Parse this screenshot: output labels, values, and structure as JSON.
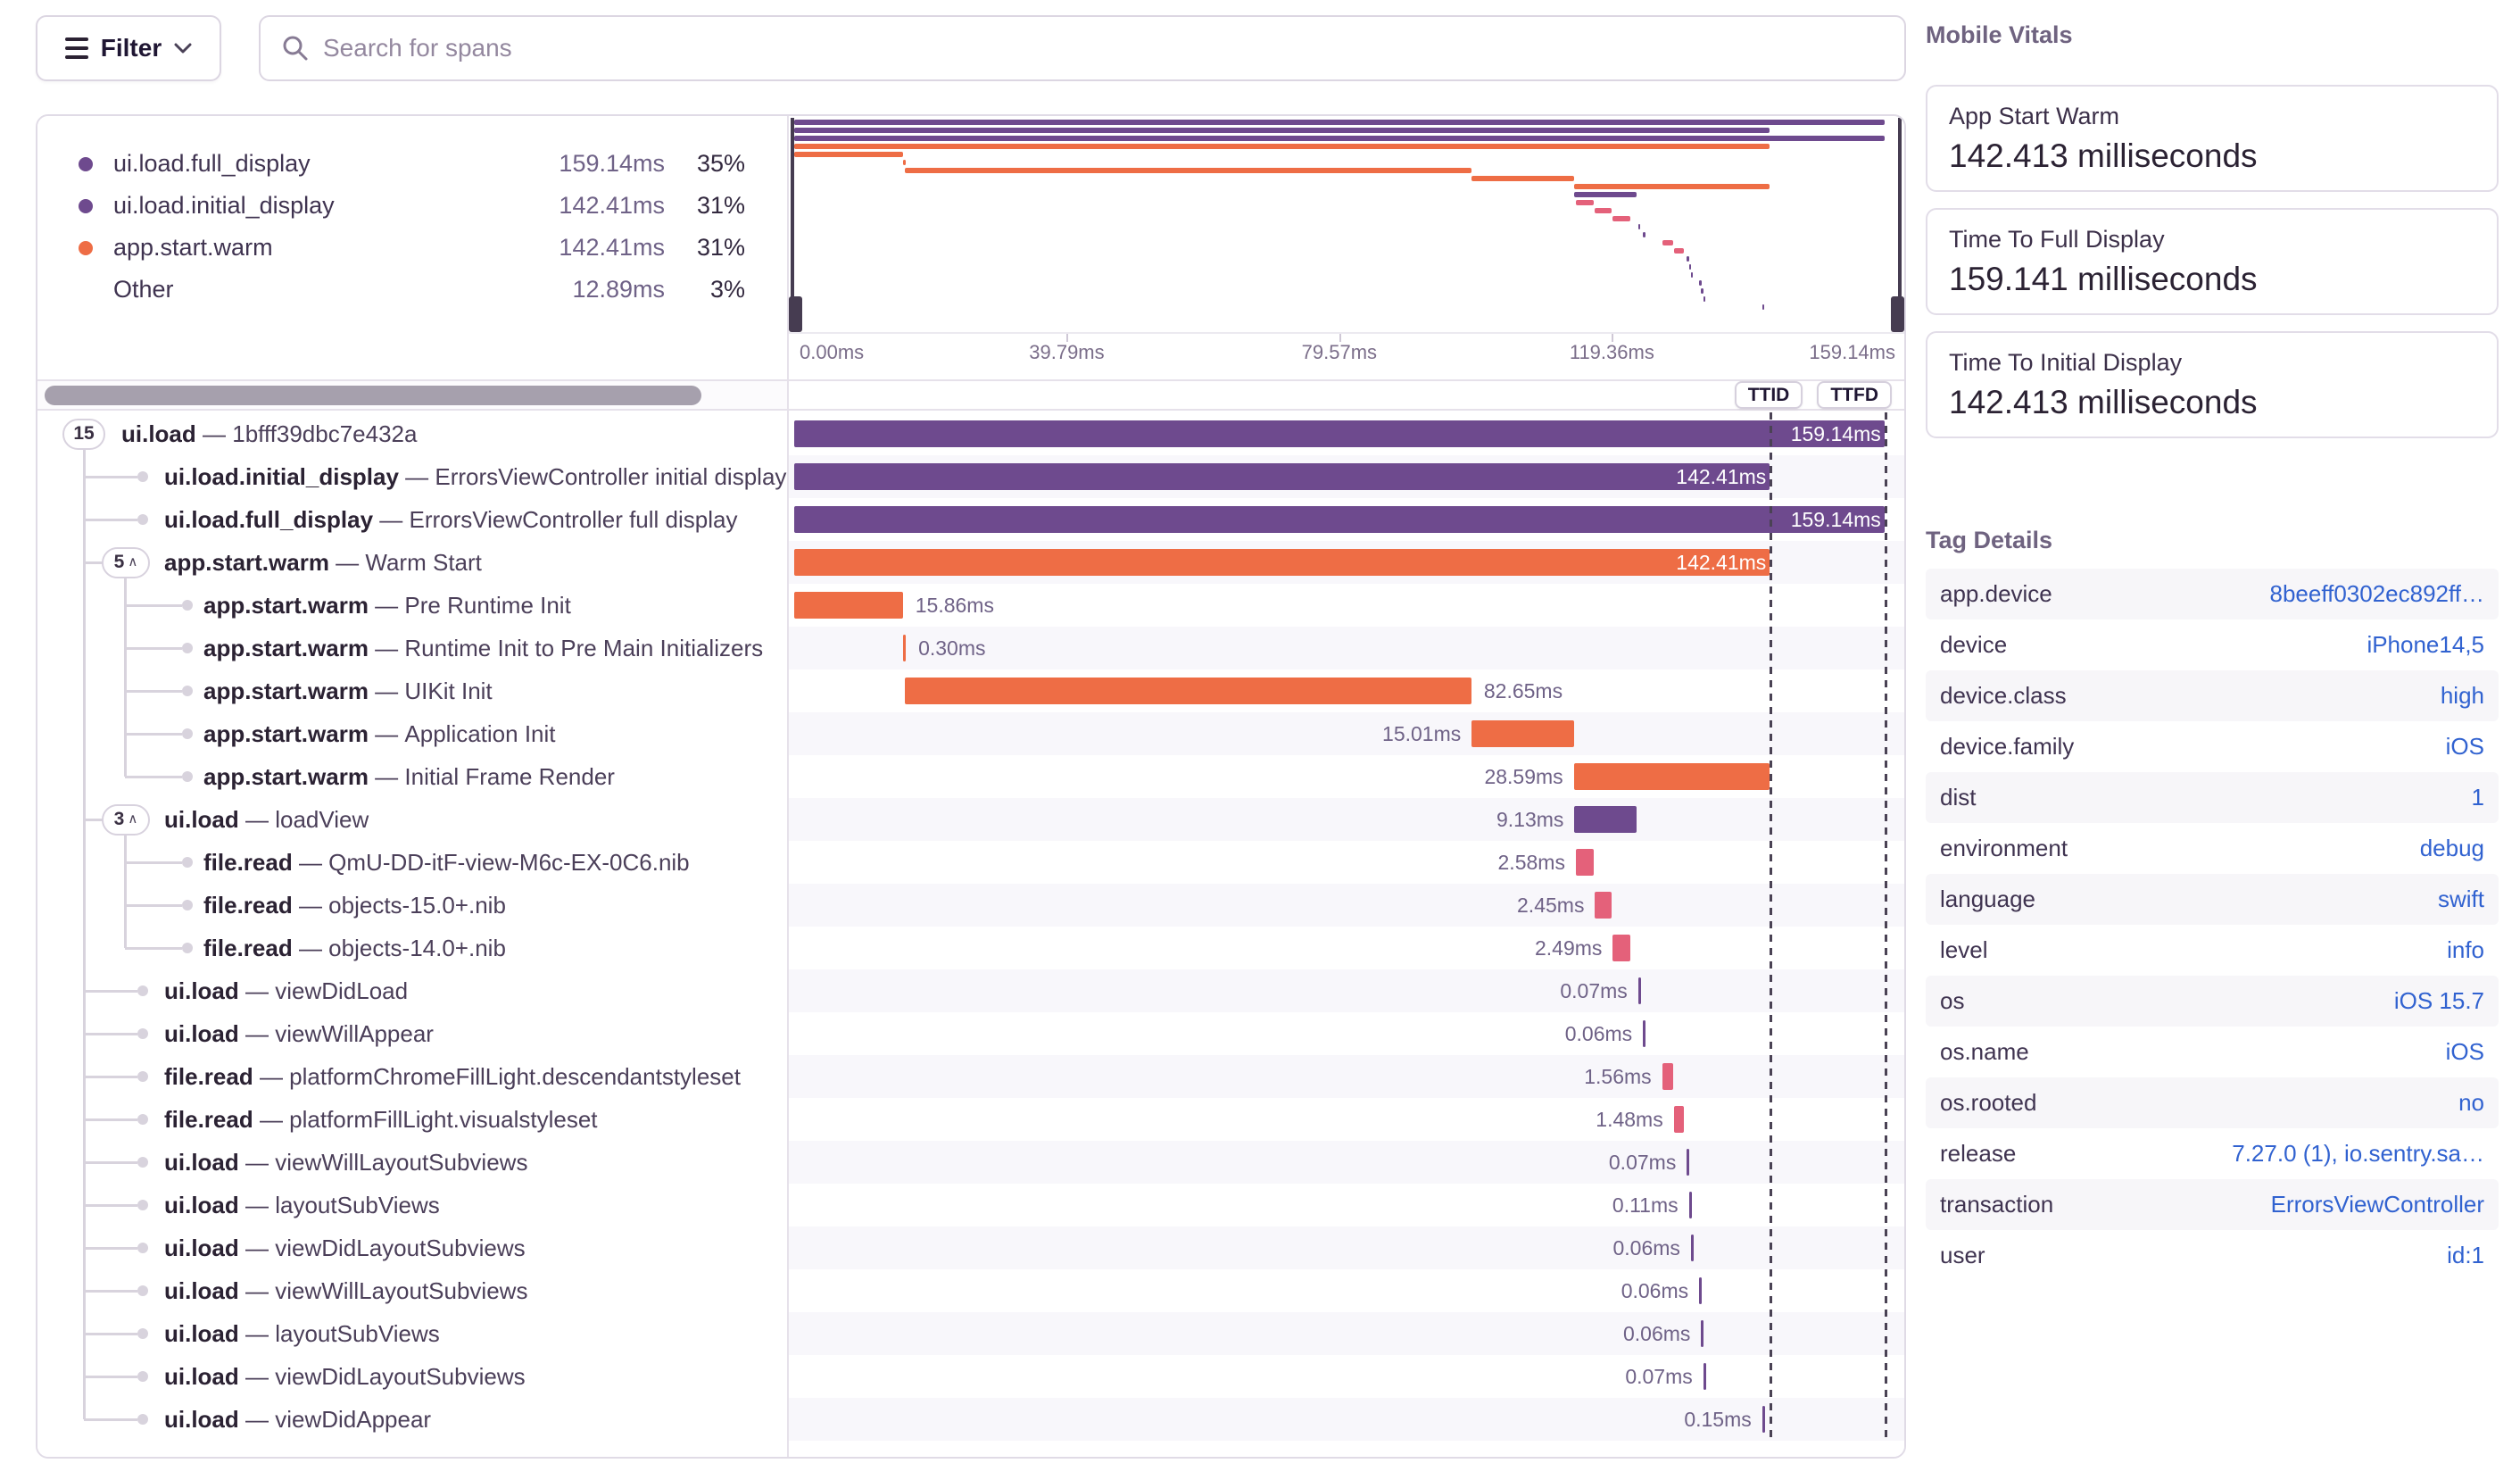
{
  "header": {
    "filter_label": "Filter",
    "search_placeholder": "Search for spans"
  },
  "legend": [
    {
      "label": "ui.load.full_display",
      "value": "159.14ms",
      "pct": "35%",
      "color": "#6e4a8e"
    },
    {
      "label": "ui.load.initial_display",
      "value": "142.41ms",
      "pct": "31%",
      "color": "#6e4a8e"
    },
    {
      "label": "app.start.warm",
      "value": "142.41ms",
      "pct": "31%",
      "color": "#ee6d45"
    },
    {
      "label": "Other",
      "value": "12.89ms",
      "pct": "3%",
      "color": null
    }
  ],
  "controls": {
    "ttid_label": "TTID",
    "ttfd_label": "TTFD"
  },
  "chart_data": {
    "type": "waterfall",
    "unit": "ms",
    "title": "Span waterfall for ui.load transaction",
    "separator": "—",
    "caret_glyph": "∧",
    "axis": {
      "max_ms": 161,
      "ticks": [
        {
          "label": "0.00ms",
          "ms": 0
        },
        {
          "label": "39.79ms",
          "ms": 39.79
        },
        {
          "label": "79.57ms",
          "ms": 79.57
        },
        {
          "label": "119.36ms",
          "ms": 119.36
        },
        {
          "label": "159.14ms",
          "ms": 159.14
        }
      ]
    },
    "markers": [
      {
        "name": "TTID",
        "ms": 142.41
      },
      {
        "name": "TTFD",
        "ms": 159.14
      }
    ],
    "palette": {
      "purple": "#6e4a8e",
      "orange": "#ee6d45",
      "pink": "#e4617a"
    },
    "spans": [
      {
        "op": "ui.load",
        "desc": "1bfff39dbc7e432a",
        "depth": 0,
        "badge": "15",
        "badge_caret": false,
        "start_ms": 0,
        "duration_ms": 159.14,
        "duration_label": "159.14ms",
        "color": "purple",
        "label_pos": "in"
      },
      {
        "op": "ui.load.initial_display",
        "desc": "ErrorsViewController initial display",
        "depth": 1,
        "badge": null,
        "badge_caret": false,
        "start_ms": 0,
        "duration_ms": 142.41,
        "duration_label": "142.41ms",
        "color": "purple",
        "label_pos": "in"
      },
      {
        "op": "ui.load.full_display",
        "desc": "ErrorsViewController full display",
        "depth": 1,
        "badge": null,
        "badge_caret": false,
        "start_ms": 0,
        "duration_ms": 159.14,
        "duration_label": "159.14ms",
        "color": "purple",
        "label_pos": "in"
      },
      {
        "op": "app.start.warm",
        "desc": "Warm Start",
        "depth": 1,
        "badge": "5",
        "badge_caret": true,
        "start_ms": 0,
        "duration_ms": 142.41,
        "duration_label": "142.41ms",
        "color": "orange",
        "label_pos": "in"
      },
      {
        "op": "app.start.warm",
        "desc": "Pre Runtime Init",
        "depth": 2,
        "badge": null,
        "badge_caret": false,
        "start_ms": 0,
        "duration_ms": 15.86,
        "duration_label": "15.86ms",
        "color": "orange",
        "label_pos": "r"
      },
      {
        "op": "app.start.warm",
        "desc": "Runtime Init to Pre Main Initializers",
        "depth": 2,
        "badge": null,
        "badge_caret": false,
        "start_ms": 15.9,
        "duration_ms": 0.3,
        "duration_label": "0.30ms",
        "color": "orange",
        "label_pos": "r"
      },
      {
        "op": "app.start.warm",
        "desc": "UIKit Init",
        "depth": 2,
        "badge": null,
        "badge_caret": false,
        "start_ms": 16.2,
        "duration_ms": 82.65,
        "duration_label": "82.65ms",
        "color": "orange",
        "label_pos": "r"
      },
      {
        "op": "app.start.warm",
        "desc": "Application Init",
        "depth": 2,
        "badge": null,
        "badge_caret": false,
        "start_ms": 98.9,
        "duration_ms": 15.01,
        "duration_label": "15.01ms",
        "color": "orange",
        "label_pos": "l"
      },
      {
        "op": "app.start.warm",
        "desc": "Initial Frame Render",
        "depth": 2,
        "badge": null,
        "badge_caret": false,
        "start_ms": 113.8,
        "duration_ms": 28.59,
        "duration_label": "28.59ms",
        "color": "orange",
        "label_pos": "l"
      },
      {
        "op": "ui.load",
        "desc": "loadView",
        "depth": 1,
        "badge": "3",
        "badge_caret": true,
        "start_ms": 113.9,
        "duration_ms": 9.13,
        "duration_label": "9.13ms",
        "color": "purple",
        "label_pos": "l"
      },
      {
        "op": "file.read",
        "desc": "QmU-DD-itF-view-M6c-EX-0C6.nib",
        "depth": 2,
        "badge": null,
        "badge_caret": false,
        "start_ms": 114.1,
        "duration_ms": 2.58,
        "duration_label": "2.58ms",
        "color": "pink",
        "label_pos": "l"
      },
      {
        "op": "file.read",
        "desc": "objects-15.0+.nib",
        "depth": 2,
        "badge": null,
        "badge_caret": false,
        "start_ms": 116.9,
        "duration_ms": 2.45,
        "duration_label": "2.45ms",
        "color": "pink",
        "label_pos": "l"
      },
      {
        "op": "file.read",
        "desc": "objects-14.0+.nib",
        "depth": 2,
        "badge": null,
        "badge_caret": false,
        "start_ms": 119.5,
        "duration_ms": 2.49,
        "duration_label": "2.49ms",
        "color": "pink",
        "label_pos": "l"
      },
      {
        "op": "ui.load",
        "desc": "viewDidLoad",
        "depth": 1,
        "badge": null,
        "badge_caret": false,
        "start_ms": 123.2,
        "duration_ms": 0.07,
        "duration_label": "0.07ms",
        "color": "purple",
        "label_pos": "l"
      },
      {
        "op": "ui.load",
        "desc": "viewWillAppear",
        "depth": 1,
        "badge": null,
        "badge_caret": false,
        "start_ms": 123.9,
        "duration_ms": 0.06,
        "duration_label": "0.06ms",
        "color": "purple",
        "label_pos": "l"
      },
      {
        "op": "file.read",
        "desc": "platformChromeFillLight.descendantstyleset",
        "depth": 1,
        "badge": null,
        "badge_caret": false,
        "start_ms": 126.7,
        "duration_ms": 1.56,
        "duration_label": "1.56ms",
        "color": "pink",
        "label_pos": "l"
      },
      {
        "op": "file.read",
        "desc": "platformFillLight.visualstyleset",
        "depth": 1,
        "badge": null,
        "badge_caret": false,
        "start_ms": 128.4,
        "duration_ms": 1.48,
        "duration_label": "1.48ms",
        "color": "pink",
        "label_pos": "l"
      },
      {
        "op": "ui.load",
        "desc": "viewWillLayoutSubviews",
        "depth": 1,
        "badge": null,
        "badge_caret": false,
        "start_ms": 130.3,
        "duration_ms": 0.07,
        "duration_label": "0.07ms",
        "color": "purple",
        "label_pos": "l"
      },
      {
        "op": "ui.load",
        "desc": "layoutSubViews",
        "depth": 1,
        "badge": null,
        "badge_caret": false,
        "start_ms": 130.6,
        "duration_ms": 0.11,
        "duration_label": "0.11ms",
        "color": "purple",
        "label_pos": "l"
      },
      {
        "op": "ui.load",
        "desc": "viewDidLayoutSubviews",
        "depth": 1,
        "badge": null,
        "badge_caret": false,
        "start_ms": 130.9,
        "duration_ms": 0.06,
        "duration_label": "0.06ms",
        "color": "purple",
        "label_pos": "l"
      },
      {
        "op": "ui.load",
        "desc": "viewWillLayoutSubviews",
        "depth": 1,
        "badge": null,
        "badge_caret": false,
        "start_ms": 132.1,
        "duration_ms": 0.06,
        "duration_label": "0.06ms",
        "color": "purple",
        "label_pos": "l"
      },
      {
        "op": "ui.load",
        "desc": "layoutSubViews",
        "depth": 1,
        "badge": null,
        "badge_caret": false,
        "start_ms": 132.4,
        "duration_ms": 0.06,
        "duration_label": "0.06ms",
        "color": "purple",
        "label_pos": "l"
      },
      {
        "op": "ui.load",
        "desc": "viewDidLayoutSubviews",
        "depth": 1,
        "badge": null,
        "badge_caret": false,
        "start_ms": 132.7,
        "duration_ms": 0.07,
        "duration_label": "0.07ms",
        "color": "purple",
        "label_pos": "l"
      },
      {
        "op": "ui.load",
        "desc": "viewDidAppear",
        "depth": 1,
        "badge": null,
        "badge_caret": false,
        "start_ms": 141.3,
        "duration_ms": 0.15,
        "duration_label": "0.15ms",
        "color": "purple",
        "label_pos": "l"
      }
    ]
  },
  "vitals": {
    "title": "Mobile Vitals",
    "cards": [
      {
        "title": "App Start Warm",
        "value": "142.413 milliseconds"
      },
      {
        "title": "Time To Full Display",
        "value": "159.141 milliseconds"
      },
      {
        "title": "Time To Initial Display",
        "value": "142.413 milliseconds"
      }
    ]
  },
  "tags": {
    "title": "Tag Details",
    "rows": [
      {
        "key": "app.device",
        "value": "8beeff0302ec892ff…"
      },
      {
        "key": "device",
        "value": "iPhone14,5"
      },
      {
        "key": "device.class",
        "value": "high"
      },
      {
        "key": "device.family",
        "value": "iOS"
      },
      {
        "key": "dist",
        "value": "1"
      },
      {
        "key": "environment",
        "value": "debug"
      },
      {
        "key": "language",
        "value": "swift"
      },
      {
        "key": "level",
        "value": "info"
      },
      {
        "key": "os",
        "value": "iOS 15.7"
      },
      {
        "key": "os.name",
        "value": "iOS"
      },
      {
        "key": "os.rooted",
        "value": "no"
      },
      {
        "key": "release",
        "value": "7.27.0 (1), io.sentry.sa…"
      },
      {
        "key": "transaction",
        "value": "ErrorsViewController"
      },
      {
        "key": "user",
        "value": "id:1"
      }
    ]
  }
}
